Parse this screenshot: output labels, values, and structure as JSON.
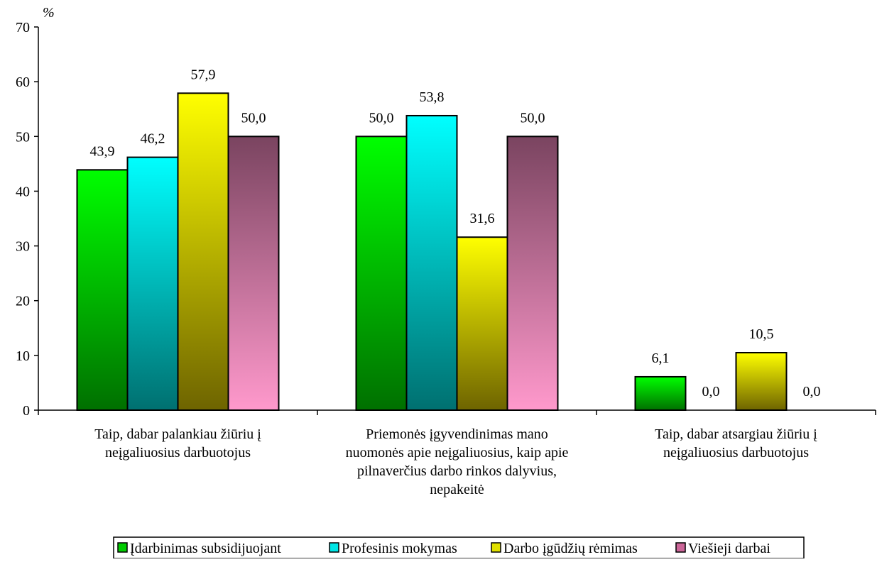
{
  "chart_data": {
    "type": "bar",
    "unit_label": "%",
    "categories": [
      "Taip, dabar palankiau žiūriu į neįgaliuosius darbuotojus",
      "Priemonės įgyvendinimas mano nuomonės apie neįgaliuosius, kaip apie pilnaverčius darbo rinkos dalyvius, nepakeitė",
      "Taip, dabar atsargiau žiūriu į neįgaliuosius darbuotojus"
    ],
    "category_lines": [
      [
        "Taip, dabar palankiau žiūriu į",
        "neįgaliuosius darbuotojus"
      ],
      [
        "Priemonės įgyvendinimas mano",
        "nuomonės apie neįgaliuosius, kaip apie",
        "pilnaverčius darbo rinkos dalyvius,",
        "nepakeitė"
      ],
      [
        "Taip, dabar atsargiau žiūriu į",
        "neįgaliuosius darbuotojus"
      ]
    ],
    "series": [
      {
        "name": "Įdarbinimas subsidijuojant",
        "values": [
          43.9,
          50.0,
          6.1
        ],
        "color_top": "#00ff00",
        "color_bottom": "#007000",
        "legend_color": "#00cc00"
      },
      {
        "name": "Profesinis mokymas",
        "values": [
          46.2,
          53.8,
          0.0
        ],
        "color_top": "#00ffff",
        "color_bottom": "#007070",
        "legend_color": "#00e5e5"
      },
      {
        "name": "Darbo įgūdžių rėmimas",
        "values": [
          57.9,
          31.6,
          10.5
        ],
        "color_top": "#ffff00",
        "color_bottom": "#6e6400",
        "legend_color": "#e0e000"
      },
      {
        "name": "Viešieji darbai",
        "values": [
          50.0,
          50.0,
          0.0
        ],
        "color_top": "#7a4460",
        "color_bottom": "#ff99cc",
        "legend_color": "#cc6699"
      }
    ],
    "data_labels": [
      [
        "43,9",
        "50,0",
        "6,1"
      ],
      [
        "46,2",
        "53,8",
        "0,0"
      ],
      [
        "57,9",
        "31,6",
        "10,5"
      ],
      [
        "50,0",
        "50,0",
        "0,0"
      ]
    ],
    "ylim": [
      0,
      70
    ],
    "yticks": [
      0,
      10,
      20,
      30,
      40,
      50,
      60,
      70
    ],
    "ytick_labels": [
      "0",
      "10",
      "20",
      "30",
      "40",
      "50",
      "60",
      "70"
    ],
    "grid": false,
    "legend_position": "bottom-center"
  }
}
